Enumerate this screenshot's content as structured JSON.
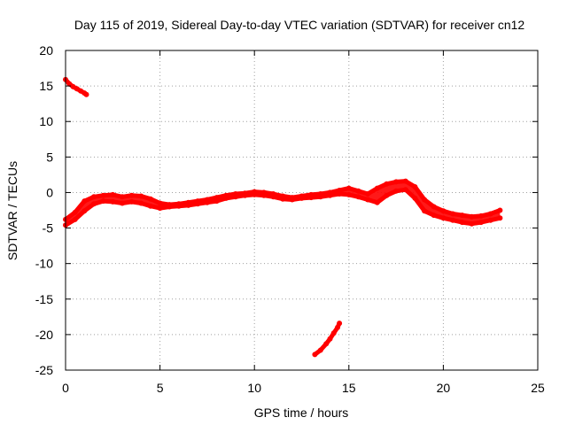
{
  "chart_data": {
    "type": "scatter",
    "title": "Day 115 of 2019, Sidereal Day-to-day VTEC variation (SDTVAR) for receiver cn12",
    "xlabel": "GPS time / hours",
    "ylabel": "SDTVAR / TECUs",
    "xlim": [
      0,
      25
    ],
    "ylim": [
      -25,
      20
    ],
    "xticks": [
      0,
      5,
      10,
      15,
      20,
      25
    ],
    "yticks": [
      20,
      15,
      10,
      5,
      0,
      -5,
      -10,
      -15,
      -20,
      -25
    ],
    "grid": true,
    "marker_color": "#ff0000",
    "series": [
      {
        "name": "band-upper",
        "x": [
          0.0,
          0.5,
          1.0,
          1.5,
          2.0,
          2.5,
          3.0,
          3.5,
          4.0,
          4.5,
          5.0,
          5.5,
          6.0,
          6.5,
          7.0,
          7.5,
          8.0,
          8.5,
          9.0,
          9.5,
          10.0,
          10.5,
          11.0,
          11.5,
          12.0,
          12.5,
          13.0,
          13.5,
          14.0,
          14.5,
          15.0,
          15.5,
          16.0,
          16.5,
          17.0,
          17.5,
          18.0,
          18.5,
          19.0,
          19.5,
          20.0,
          20.5,
          21.0,
          21.5,
          22.0,
          22.5,
          23.0
        ],
        "y": [
          -3.8,
          -2.8,
          -1.2,
          -0.6,
          -0.4,
          -0.3,
          -0.6,
          -0.4,
          -0.5,
          -0.9,
          -1.5,
          -1.7,
          -1.6,
          -1.4,
          -1.2,
          -1.0,
          -0.7,
          -0.4,
          -0.2,
          -0.1,
          0.1,
          0.0,
          -0.2,
          -0.5,
          -0.7,
          -0.5,
          -0.3,
          -0.2,
          0.0,
          0.3,
          0.6,
          0.2,
          -0.2,
          0.6,
          1.2,
          1.5,
          1.6,
          0.8,
          -1.0,
          -2.0,
          -2.6,
          -3.0,
          -3.2,
          -3.4,
          -3.3,
          -3.0,
          -2.5
        ]
      },
      {
        "name": "band-lower",
        "x": [
          0.0,
          0.5,
          1.0,
          1.5,
          2.0,
          2.5,
          3.0,
          3.5,
          4.0,
          4.5,
          5.0,
          5.5,
          6.0,
          6.5,
          7.0,
          7.5,
          8.0,
          8.5,
          9.0,
          9.5,
          10.0,
          10.5,
          11.0,
          11.5,
          12.0,
          12.5,
          13.0,
          13.5,
          14.0,
          14.5,
          15.0,
          15.5,
          16.0,
          16.5,
          17.0,
          17.5,
          18.0,
          18.5,
          19.0,
          19.5,
          20.0,
          20.5,
          21.0,
          21.5,
          22.0,
          22.5,
          23.0
        ],
        "y": [
          -4.6,
          -3.8,
          -2.6,
          -1.6,
          -1.2,
          -1.3,
          -1.5,
          -1.3,
          -1.5,
          -1.9,
          -2.2,
          -2.0,
          -1.9,
          -1.8,
          -1.6,
          -1.4,
          -1.2,
          -0.8,
          -0.6,
          -0.4,
          -0.3,
          -0.4,
          -0.6,
          -0.9,
          -1.0,
          -0.8,
          -0.7,
          -0.6,
          -0.4,
          -0.2,
          -0.3,
          -0.6,
          -1.0,
          -1.4,
          -0.4,
          0.2,
          0.4,
          -0.8,
          -2.6,
          -3.2,
          -3.6,
          -3.9,
          -4.2,
          -4.4,
          -4.2,
          -3.9,
          -3.6
        ]
      },
      {
        "name": "early-fragment",
        "x": [
          0.0,
          0.2,
          0.4,
          0.6,
          0.8,
          1.0,
          1.1
        ],
        "y": [
          15.9,
          15.3,
          14.9,
          14.6,
          14.3,
          14.0,
          13.8
        ]
      },
      {
        "name": "late-fragment",
        "x": [
          13.2,
          13.5,
          13.8,
          14.0,
          14.2,
          14.4,
          14.5
        ],
        "y": [
          -22.8,
          -22.2,
          -21.3,
          -20.6,
          -19.8,
          -19.0,
          -18.4
        ]
      }
    ]
  }
}
